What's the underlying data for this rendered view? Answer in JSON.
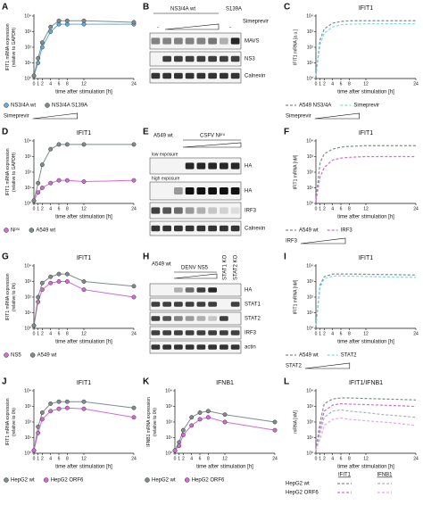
{
  "chart_data": [
    {
      "type": "line",
      "letter": "A",
      "title": "",
      "ylabel": [
        "IFIT1 mRNA expression",
        "(relative to GAPDH)"
      ],
      "xlabel": "time after stimulation [h]",
      "x": [
        0,
        1,
        2,
        4,
        6,
        8,
        12,
        24
      ],
      "xlim": [
        0,
        24
      ],
      "xticks": [
        0,
        1,
        2,
        4,
        6,
        8,
        12,
        24
      ],
      "log_y": true,
      "ylim": [
        1,
        10000
      ],
      "yticks": [
        {
          "value": 1,
          "label": "10⁰"
        },
        {
          "value": 10,
          "label": "10¹"
        },
        {
          "value": 100,
          "label": "10²"
        },
        {
          "value": 1000,
          "label": "10³"
        },
        {
          "value": 10000,
          "label": "10⁴"
        }
      ],
      "style": "markers",
      "legend_note": "Simeprevir",
      "series": [
        {
          "name": "NS3/4A wt",
          "color": "#5dade2",
          "values": [
            1.5,
            10,
            100,
            1000,
            3000,
            3000,
            3000,
            3000
          ]
        },
        {
          "name": "NS3/4A S139A",
          "color": "#7f8c8d",
          "values": [
            1.5,
            20,
            200,
            2000,
            5000,
            5000,
            5000,
            4000
          ]
        }
      ]
    },
    {
      "type": "line",
      "letter": "C",
      "title": "IFIT1",
      "ylabel": [
        "IFIT1 mRNA [a.u.]"
      ],
      "xlabel": "time after stimulation [h]",
      "x": [
        0,
        1,
        2,
        4,
        6,
        8,
        12,
        16,
        20,
        24
      ],
      "xlim": [
        0,
        24
      ],
      "xticks": [
        0,
        1,
        2,
        4,
        6,
        8,
        12,
        24
      ],
      "log_y": true,
      "ylim": [
        1,
        10000
      ],
      "yticks": [
        {
          "value": 1,
          "label": "10⁰"
        },
        {
          "value": 10,
          "label": "10¹"
        },
        {
          "value": 100,
          "label": "10²"
        },
        {
          "value": 1000,
          "label": "10³"
        },
        {
          "value": 10000,
          "label": "10⁴"
        }
      ],
      "style": "dashed",
      "legend_note": "Simeprevir",
      "series": [
        {
          "name": "A549 NS3/4A",
          "color": "#7f8c8d",
          "values": [
            1.5,
            300,
            1500,
            3500,
            4500,
            5000,
            5000,
            5000,
            5000,
            5000
          ]
        },
        {
          "name": "Simeprevir",
          "color": "#7fd8f0",
          "values": [
            1.5,
            150,
            800,
            2000,
            2800,
            3000,
            3200,
            3200,
            3200,
            3200
          ]
        }
      ]
    },
    {
      "type": "line",
      "letter": "D",
      "title": "IFIT1",
      "ylabel": [
        "IFIT1 mRNA expression",
        "(relative to GAPDH)"
      ],
      "xlabel": "time after stimulation [h]",
      "x": [
        0,
        1,
        2,
        4,
        6,
        8,
        12,
        24
      ],
      "xlim": [
        0,
        24
      ],
      "xticks": [
        0,
        1,
        2,
        4,
        6,
        8,
        12,
        24
      ],
      "log_y": true,
      "ylim": [
        1,
        10000
      ],
      "yticks": [
        {
          "value": 1,
          "label": "10⁰"
        },
        {
          "value": 10,
          "label": "10¹"
        },
        {
          "value": 100,
          "label": "10²"
        },
        {
          "value": 1000,
          "label": "10³"
        },
        {
          "value": 10000,
          "label": "10⁴"
        }
      ],
      "style": "markers",
      "series": [
        {
          "name": "Nᵖʳᵒ",
          "color": "#d36ad6",
          "values": [
            1.5,
            5,
            10,
            20,
            30,
            30,
            25,
            30
          ]
        },
        {
          "name": "A549 wt",
          "color": "#7f8c8d",
          "values": [
            1.5,
            20,
            300,
            3000,
            6000,
            6000,
            6000,
            6000
          ]
        }
      ]
    },
    {
      "type": "line",
      "letter": "F",
      "title": "IFIT1",
      "ylabel": [
        "IFIT1 mRNA [nM]"
      ],
      "xlabel": "time after stimulation [h]",
      "x": [
        0,
        1,
        2,
        4,
        6,
        8,
        12,
        16,
        20,
        24
      ],
      "xlim": [
        0,
        24
      ],
      "xticks": [
        0,
        1,
        2,
        4,
        6,
        8,
        12,
        24
      ],
      "log_y": true,
      "ylim": [
        1,
        10000
      ],
      "yticks": [
        {
          "value": 1,
          "label": "10⁰"
        },
        {
          "value": 10,
          "label": "10¹"
        },
        {
          "value": 100,
          "label": "10²"
        },
        {
          "value": 1000,
          "label": "10³"
        },
        {
          "value": 10000,
          "label": "10⁴"
        }
      ],
      "style": "dashed",
      "legend_note": "IRF3",
      "series": [
        {
          "name": "A549 wt",
          "color": "#7f8c8d",
          "values": [
            1.5,
            400,
            1500,
            3000,
            4000,
            4500,
            5000,
            5000,
            5000,
            5000
          ]
        },
        {
          "name": "IRF3",
          "color": "#d36ad6",
          "values": [
            1.5,
            50,
            200,
            600,
            800,
            900,
            1000,
            1000,
            1000,
            1000
          ]
        }
      ]
    },
    {
      "type": "line",
      "letter": "G",
      "title": "IFIT1",
      "ylabel": [
        "IFIT1 mRNA expression",
        "(relative to 0h)"
      ],
      "xlabel": "time after stimulation [h]",
      "x": [
        0,
        1,
        2,
        4,
        6,
        8,
        12,
        24
      ],
      "xlim": [
        0,
        24
      ],
      "xticks": [
        0,
        1,
        2,
        4,
        6,
        8,
        12,
        24
      ],
      "log_y": true,
      "ylim": [
        1,
        10000
      ],
      "yticks": [
        {
          "value": 1,
          "label": "10⁰"
        },
        {
          "value": 10,
          "label": "10¹"
        },
        {
          "value": 100,
          "label": "10²"
        },
        {
          "value": 1000,
          "label": "10³"
        },
        {
          "value": 10000,
          "label": "10⁴"
        }
      ],
      "style": "markers",
      "series": [
        {
          "name": "NS5",
          "color": "#d36ad6",
          "values": [
            1.5,
            50,
            300,
            800,
            1000,
            1000,
            300,
            100
          ]
        },
        {
          "name": "A549 wt",
          "color": "#7f8c8d",
          "values": [
            1.5,
            100,
            800,
            2000,
            3000,
            3000,
            1000,
            500
          ]
        }
      ]
    },
    {
      "type": "line",
      "letter": "I",
      "title": "IFIT1",
      "ylabel": [
        "IFIT1 mRNA [nM]"
      ],
      "xlabel": "time after stimulation [h]",
      "x": [
        0,
        1,
        2,
        4,
        6,
        8,
        12,
        16,
        20,
        24
      ],
      "xlim": [
        0,
        24
      ],
      "xticks": [
        0,
        1,
        2,
        4,
        6,
        8,
        12,
        24
      ],
      "log_y": true,
      "ylim": [
        1,
        10000
      ],
      "yticks": [
        {
          "value": 1,
          "label": "10⁰"
        },
        {
          "value": 10,
          "label": "10¹"
        },
        {
          "value": 100,
          "label": "10²"
        },
        {
          "value": 1000,
          "label": "10³"
        },
        {
          "value": 10000,
          "label": "10⁴"
        }
      ],
      "style": "dashed",
      "legend_note": "STAT2",
      "series": [
        {
          "name": "A549 wt",
          "color": "#7f8c8d",
          "values": [
            1.5,
            600,
            2000,
            3000,
            3000,
            3000,
            2900,
            2800,
            2700,
            2600
          ]
        },
        {
          "name": "STAT2",
          "color": "#7fd8f0",
          "values": [
            1.5,
            400,
            1500,
            2200,
            2300,
            2200,
            2100,
            2000,
            1900,
            1800
          ]
        }
      ]
    },
    {
      "type": "line",
      "letter": "J",
      "title": "IFIT1",
      "ylabel": [
        "IFIT1 mRNA expression",
        "(relative to 0h)"
      ],
      "xlabel": "time after stimulation [h]",
      "x": [
        0,
        1,
        2,
        4,
        6,
        8,
        12,
        24
      ],
      "xlim": [
        0,
        24
      ],
      "xticks": [
        0,
        1,
        2,
        4,
        6,
        8,
        12,
        24
      ],
      "log_y": true,
      "ylim": [
        1,
        10000
      ],
      "yticks": [
        {
          "value": 1,
          "label": "10⁰"
        },
        {
          "value": 10,
          "label": "10¹"
        },
        {
          "value": 100,
          "label": "10²"
        },
        {
          "value": 1000,
          "label": "10³"
        },
        {
          "value": 10000,
          "label": "10⁴"
        }
      ],
      "style": "markers",
      "series": [
        {
          "name": "HepG2 wt",
          "color": "#7f8c8d",
          "values": [
            1.5,
            50,
            400,
            1500,
            2000,
            2000,
            2000,
            800
          ]
        },
        {
          "name": "HepG2 ORF6",
          "color": "#d36ad6",
          "values": [
            1.5,
            20,
            150,
            500,
            700,
            800,
            700,
            200
          ]
        }
      ]
    },
    {
      "type": "line",
      "letter": "K",
      "title": "IFNB1",
      "ylabel": [
        "IFNB1 mRNA expression",
        "(relative to 0h)"
      ],
      "xlabel": "time after stimulation [h]",
      "x": [
        0,
        1,
        2,
        4,
        6,
        8,
        12,
        24
      ],
      "xlim": [
        0,
        24
      ],
      "xticks": [
        0,
        1,
        2,
        4,
        6,
        8,
        12,
        24
      ],
      "log_y": true,
      "ylim": [
        1,
        10000
      ],
      "yticks": [
        {
          "value": 1,
          "label": "10⁰"
        },
        {
          "value": 10,
          "label": "10¹"
        },
        {
          "value": 100,
          "label": "10²"
        },
        {
          "value": 1000,
          "label": "10³"
        },
        {
          "value": 10000,
          "label": "10⁴"
        }
      ],
      "style": "markers",
      "series": [
        {
          "name": "HepG2 wt",
          "color": "#7f8c8d",
          "values": [
            1.5,
            5,
            30,
            200,
            400,
            500,
            300,
            100
          ]
        },
        {
          "name": "HepG2 ORF6",
          "color": "#d36ad6",
          "values": [
            1.5,
            3,
            15,
            60,
            150,
            200,
            100,
            30
          ]
        }
      ]
    },
    {
      "type": "line",
      "letter": "L",
      "title": "IFIT1/IFNB1",
      "ylabel": [
        "mRNA [nM]"
      ],
      "xlabel": "time after stimulation [h]",
      "x": [
        0,
        1,
        2,
        4,
        6,
        8,
        12,
        16,
        20,
        24
      ],
      "xlim": [
        0,
        24
      ],
      "xticks": [
        0,
        1,
        2,
        4,
        6,
        8,
        12,
        24
      ],
      "log_y": true,
      "ylim": [
        1,
        10000
      ],
      "yticks": [
        {
          "value": 1,
          "label": "10⁰"
        },
        {
          "value": 10,
          "label": "10¹"
        },
        {
          "value": 100,
          "label": "10²"
        },
        {
          "value": 1000,
          "label": "10³"
        },
        {
          "value": 10000,
          "label": "10⁴"
        }
      ],
      "style": "dashed",
      "legend_columns": [
        "IFIT1",
        "IFNB1"
      ],
      "legend_rows": [
        "HepG2 wt",
        "HepG2 ORF6"
      ],
      "series": [
        {
          "color": "#7f8c8d",
          "values": [
            1.5,
            100,
            1500,
            3000,
            3500,
            3500,
            3200,
            3000,
            2800,
            2600
          ]
        },
        {
          "color": "#d36ad6",
          "values": [
            1.5,
            40,
            500,
            1200,
            1500,
            1400,
            1300,
            1200,
            1100,
            1000
          ]
        },
        {
          "color": "#a9b3b3",
          "values": [
            1.5,
            20,
            200,
            500,
            600,
            500,
            400,
            300,
            250,
            200
          ]
        },
        {
          "color": "#e8a6ea",
          "values": [
            1.5,
            8,
            60,
            150,
            180,
            150,
            120,
            100,
            80,
            60
          ]
        }
      ]
    }
  ],
  "blots": [
    {
      "letter": "B",
      "groups": [
        "NS3/4A wt",
        "S139A"
      ],
      "treatment": "Simeprevir",
      "minus": [
        "-",
        "-"
      ],
      "rows": [
        "MAVS",
        "NS3",
        "Calnexin"
      ]
    },
    {
      "letter": "E",
      "groups": [
        "A549 wt",
        "CSFV Nᵖʳᵒ"
      ],
      "exposures": [
        "low exposure",
        "high exposure"
      ],
      "rows": [
        "HA",
        "HA",
        "IRF3",
        "Calnexin"
      ]
    },
    {
      "letter": "H",
      "groups": [
        "A549 wt",
        "DENV NS5",
        "STAT1 KO",
        "STAT2 KO"
      ],
      "rows": [
        "HA",
        "STAT1",
        "STAT2",
        "IRF3",
        "actin"
      ]
    }
  ]
}
